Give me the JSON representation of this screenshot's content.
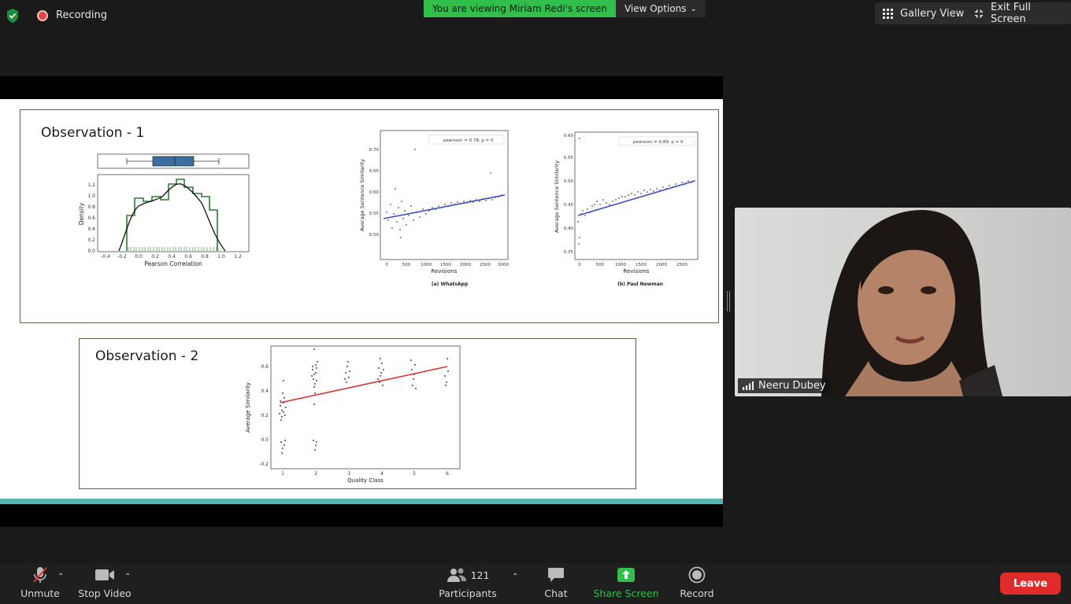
{
  "top": {
    "recording_label": "Recording",
    "viewing_text": "You are viewing Miriam Redi's screen",
    "view_options_label": "View Options",
    "gallery_view_label": "Gallery View",
    "exit_fullscreen_label": "Exit Full Screen"
  },
  "slide": {
    "obs1_title": "Observation - 1",
    "obs2_title": "Observation - 2"
  },
  "charts": {
    "density": {
      "xlabel": "Pearson Correlation",
      "ylabel": "Density",
      "xticks": [
        "-0.4",
        "-0.2",
        "0.0",
        "0.2",
        "0.4",
        "0.6",
        "0.8",
        "1.0",
        "1.2"
      ],
      "yticks": [
        "0.0",
        "0.2",
        "0.4",
        "0.6",
        "0.8",
        "1.0",
        "1.2"
      ]
    },
    "whatsapp": {
      "legend": "pearsonr = 0.78; p = 0",
      "xlabel": "Revisions",
      "ylabel": "Average Sentence Similarity",
      "caption": "(a) WhatsApp",
      "xticks": [
        "0",
        "500",
        "1000",
        "1500",
        "2000",
        "2500",
        "3000"
      ],
      "yticks": [
        "0.50",
        "0.55",
        "0.60",
        "0.65",
        "0.70"
      ]
    },
    "newman": {
      "legend": "pearsonr = 0.89; p = 0",
      "xlabel": "Revisions",
      "ylabel": "Average Sentence Similarity",
      "caption": "(b) Paul Newman",
      "xticks": [
        "0",
        "500",
        "1000",
        "1500",
        "2000",
        "2500"
      ],
      "yticks": [
        "0.35",
        "0.40",
        "0.45",
        "0.50",
        "0.55",
        "0.60"
      ]
    },
    "quality": {
      "xlabel": "Quality Class",
      "ylabel": "Average Similarity",
      "xticks": [
        "1",
        "2",
        "3",
        "4",
        "5",
        "6"
      ],
      "yticks": [
        "-0.2",
        "0.0",
        "0.2",
        "0.4",
        "0.6"
      ]
    }
  },
  "video": {
    "participant_name": "Neeru Dubey"
  },
  "toolbar": {
    "unmute_label": "Unmute",
    "stop_video_label": "Stop Video",
    "participants_count": "121",
    "participants_label": "Participants",
    "chat_label": "Chat",
    "share_screen_label": "Share Screen",
    "record_label": "Record",
    "leave_label": "Leave"
  },
  "colors": {
    "share_green": "#2fbf4a",
    "leave_red": "#e02b2b",
    "box_blue": "#3a6fa0",
    "hist_green": "#2e7d32",
    "fit_blue": "#3b4fc4",
    "fit_red": "#e03030"
  }
}
